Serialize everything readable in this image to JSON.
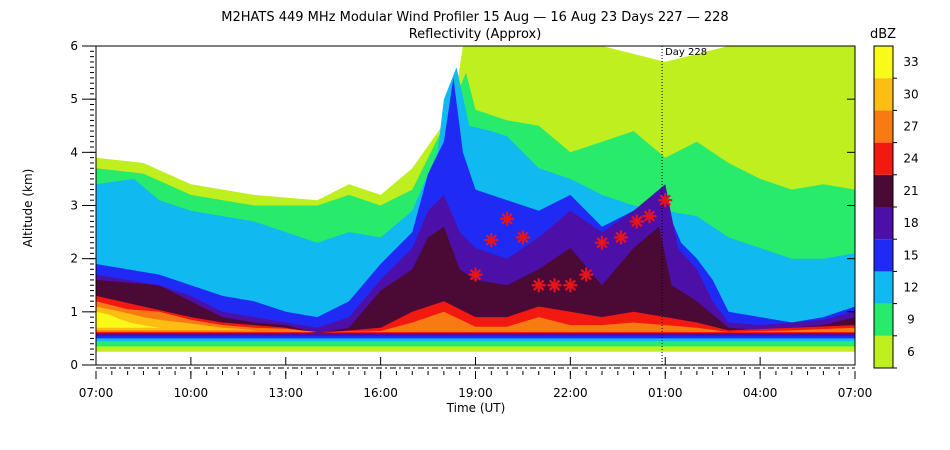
{
  "chart_data": {
    "type": "heatmap",
    "title": "M2HATS 449 MHz Modular Wind Profiler  15 Aug — 16 Aug 23 Days 227 — 228",
    "subtitle": "Reflectivity (Approx)",
    "xlabel": "Time (UT)",
    "ylabel": "Altitude (km)",
    "x_ticks": [
      "07:00",
      "10:00",
      "13:00",
      "16:00",
      "19:00",
      "22:00",
      "01:00",
      "04:00",
      "07:00"
    ],
    "y_ticks": [
      "0",
      "1",
      "2",
      "3",
      "4",
      "5",
      "6"
    ],
    "xlim_hours": [
      0,
      24
    ],
    "ylim_km": [
      0,
      6
    ],
    "annotation": {
      "label": "Day 228",
      "x_hours": 17.9
    },
    "colorbar": {
      "unit": "dBZ",
      "tick_labels": [
        "6",
        "9",
        "12",
        "15",
        "18",
        "21",
        "24",
        "27",
        "30",
        "33"
      ],
      "levels": [
        {
          "from": 6,
          "to": 9,
          "color": "#bfef1f"
        },
        {
          "from": 9,
          "to": 12,
          "color": "#28ea6b"
        },
        {
          "from": 12,
          "to": 15,
          "color": "#10b9ef"
        },
        {
          "from": 15,
          "to": 18,
          "color": "#1f2bf4"
        },
        {
          "from": 18,
          "to": 21,
          "color": "#4c0fa8"
        },
        {
          "from": 21,
          "to": 24,
          "color": "#4b0a36"
        },
        {
          "from": 24,
          "to": 27,
          "color": "#f21a10"
        },
        {
          "from": 27,
          "to": 30,
          "color": "#f87a13"
        },
        {
          "from": 30,
          "to": 33,
          "color": "#fdbd13"
        },
        {
          "from": 33,
          "to": 36,
          "color": "#fafa1a"
        }
      ]
    },
    "layers": [
      {
        "color": "#bfef1f",
        "points": [
          [
            0,
            0.25
          ],
          [
            0,
            3.9
          ],
          [
            1.5,
            3.8
          ],
          [
            3,
            3.4
          ],
          [
            5,
            3.2
          ],
          [
            7,
            3.1
          ],
          [
            8,
            3.4
          ],
          [
            9,
            3.2
          ],
          [
            10,
            3.7
          ],
          [
            11.3,
            4.8
          ],
          [
            11.6,
            6
          ],
          [
            14,
            6
          ],
          [
            16,
            6
          ],
          [
            18,
            5.7
          ],
          [
            20,
            6
          ],
          [
            24,
            6
          ],
          [
            24,
            4.2
          ],
          [
            24,
            0.25
          ]
        ]
      },
      {
        "color": "#28ea6b",
        "points": [
          [
            0,
            0.35
          ],
          [
            0,
            3.7
          ],
          [
            1.5,
            3.6
          ],
          [
            3,
            3.2
          ],
          [
            5,
            3.0
          ],
          [
            7,
            3.0
          ],
          [
            8,
            3.2
          ],
          [
            9,
            3.0
          ],
          [
            10,
            3.3
          ],
          [
            11,
            4.5
          ],
          [
            11.7,
            5.5
          ],
          [
            12,
            4.8
          ],
          [
            13,
            4.6
          ],
          [
            14,
            4.5
          ],
          [
            15,
            4.0
          ],
          [
            16,
            4.2
          ],
          [
            17,
            4.4
          ],
          [
            18,
            3.9
          ],
          [
            19,
            4.2
          ],
          [
            20,
            3.8
          ],
          [
            21,
            3.5
          ],
          [
            22,
            3.3
          ],
          [
            23,
            3.4
          ],
          [
            24,
            3.3
          ],
          [
            24,
            0.35
          ]
        ]
      },
      {
        "color": "#10b9ef",
        "points": [
          [
            0,
            0.45
          ],
          [
            0,
            3.4
          ],
          [
            1.2,
            3.5
          ],
          [
            2,
            3.1
          ],
          [
            3,
            2.9
          ],
          [
            4,
            2.8
          ],
          [
            5,
            2.7
          ],
          [
            6,
            2.5
          ],
          [
            7,
            2.3
          ],
          [
            8,
            2.5
          ],
          [
            9,
            2.4
          ],
          [
            10,
            2.9
          ],
          [
            10.8,
            4.0
          ],
          [
            11,
            5.0
          ],
          [
            11.4,
            5.6
          ],
          [
            11.8,
            4.5
          ],
          [
            12.5,
            4.4
          ],
          [
            13,
            4.3
          ],
          [
            14,
            3.7
          ],
          [
            15,
            3.5
          ],
          [
            16,
            3.2
          ],
          [
            17,
            3.0
          ],
          [
            18,
            2.9
          ],
          [
            19,
            2.8
          ],
          [
            20,
            2.4
          ],
          [
            21,
            2.2
          ],
          [
            22,
            2.0
          ],
          [
            23,
            2.0
          ],
          [
            24,
            2.1
          ],
          [
            24,
            0.45
          ]
        ]
      },
      {
        "color": "#1f2bf4",
        "points": [
          [
            0,
            0.5
          ],
          [
            0,
            1.9
          ],
          [
            1,
            1.8
          ],
          [
            2,
            1.7
          ],
          [
            3,
            1.5
          ],
          [
            4,
            1.3
          ],
          [
            5,
            1.2
          ],
          [
            6,
            1.0
          ],
          [
            7,
            0.9
          ],
          [
            8,
            1.2
          ],
          [
            9,
            1.9
          ],
          [
            10,
            2.5
          ],
          [
            10.5,
            3.6
          ],
          [
            11,
            4.2
          ],
          [
            11.3,
            5.4
          ],
          [
            11.6,
            4.0
          ],
          [
            12,
            3.3
          ],
          [
            13,
            3.1
          ],
          [
            14,
            2.9
          ],
          [
            15,
            3.2
          ],
          [
            16,
            2.6
          ],
          [
            17,
            2.9
          ],
          [
            18,
            3.0
          ],
          [
            18.5,
            2.3
          ],
          [
            19,
            2.0
          ],
          [
            19.5,
            1.6
          ],
          [
            20,
            1.0
          ],
          [
            21,
            0.9
          ],
          [
            22,
            0.8
          ],
          [
            23,
            0.9
          ],
          [
            24,
            1.1
          ],
          [
            24,
            0.5
          ]
        ]
      },
      {
        "color": "#4c0fa8",
        "points": [
          [
            0,
            0.55
          ],
          [
            0,
            1.7
          ],
          [
            1,
            1.6
          ],
          [
            2,
            1.5
          ],
          [
            3,
            1.3
          ],
          [
            4,
            1.0
          ],
          [
            5,
            0.9
          ],
          [
            6,
            0.8
          ],
          [
            7,
            0.7
          ],
          [
            8,
            0.9
          ],
          [
            9,
            1.6
          ],
          [
            10,
            2.2
          ],
          [
            10.5,
            2.9
          ],
          [
            11,
            3.2
          ],
          [
            11.5,
            2.5
          ],
          [
            12,
            2.2
          ],
          [
            13,
            2.0
          ],
          [
            14,
            2.4
          ],
          [
            15,
            2.9
          ],
          [
            16,
            2.5
          ],
          [
            17,
            2.9
          ],
          [
            18,
            3.4
          ],
          [
            18.4,
            2.2
          ],
          [
            19,
            1.8
          ],
          [
            19.5,
            1.2
          ],
          [
            20,
            0.8
          ],
          [
            21,
            0.75
          ],
          [
            22,
            0.8
          ],
          [
            23,
            0.85
          ],
          [
            24,
            1.0
          ],
          [
            24,
            0.55
          ]
        ]
      },
      {
        "color": "#4b0a36",
        "points": [
          [
            0,
            0.6
          ],
          [
            0,
            1.6
          ],
          [
            2,
            1.5
          ],
          [
            3,
            1.2
          ],
          [
            4,
            0.9
          ],
          [
            5,
            0.8
          ],
          [
            6,
            0.75
          ],
          [
            7,
            0.6
          ],
          [
            8,
            0.7
          ],
          [
            9,
            1.4
          ],
          [
            10,
            1.8
          ],
          [
            10.5,
            2.4
          ],
          [
            11,
            2.6
          ],
          [
            11.5,
            1.8
          ],
          [
            12,
            1.6
          ],
          [
            13,
            1.5
          ],
          [
            14,
            1.8
          ],
          [
            15,
            2.2
          ],
          [
            16,
            1.5
          ],
          [
            17,
            2.2
          ],
          [
            17.8,
            2.6
          ],
          [
            18.2,
            1.5
          ],
          [
            19,
            1.2
          ],
          [
            20,
            0.7
          ],
          [
            21,
            0.65
          ],
          [
            22,
            0.7
          ],
          [
            23,
            0.75
          ],
          [
            24,
            0.9
          ],
          [
            24,
            0.6
          ]
        ]
      },
      {
        "color": "#f21a10",
        "points": [
          [
            0,
            0.6
          ],
          [
            0,
            1.3
          ],
          [
            1.5,
            1.1
          ],
          [
            3,
            0.9
          ],
          [
            4,
            0.8
          ],
          [
            5,
            0.75
          ],
          [
            6,
            0.7
          ],
          [
            7,
            0.6
          ],
          [
            9,
            0.7
          ],
          [
            10,
            1.0
          ],
          [
            11,
            1.2
          ],
          [
            12,
            0.9
          ],
          [
            13,
            0.9
          ],
          [
            14,
            1.1
          ],
          [
            15,
            1.0
          ],
          [
            16,
            0.9
          ],
          [
            17,
            1.0
          ],
          [
            18,
            0.9
          ],
          [
            19,
            0.8
          ],
          [
            20,
            0.65
          ],
          [
            22,
            0.7
          ],
          [
            24,
            0.75
          ],
          [
            24,
            0.6
          ]
        ]
      },
      {
        "color": "#f87a13",
        "points": [
          [
            0,
            0.62
          ],
          [
            0,
            1.2
          ],
          [
            1,
            1.05
          ],
          [
            2,
            1.0
          ],
          [
            3,
            0.85
          ],
          [
            4,
            0.75
          ],
          [
            5,
            0.7
          ],
          [
            6,
            0.68
          ],
          [
            7,
            0.62
          ],
          [
            9,
            0.64
          ],
          [
            10,
            0.8
          ],
          [
            11,
            1.0
          ],
          [
            12,
            0.72
          ],
          [
            13,
            0.72
          ],
          [
            14,
            0.9
          ],
          [
            15,
            0.75
          ],
          [
            16,
            0.75
          ],
          [
            17,
            0.8
          ],
          [
            18,
            0.75
          ],
          [
            19,
            0.7
          ],
          [
            20,
            0.62
          ],
          [
            22,
            0.65
          ],
          [
            24,
            0.7
          ],
          [
            24,
            0.62
          ]
        ]
      },
      {
        "color": "#fdbd13",
        "points": [
          [
            0,
            0.65
          ],
          [
            0,
            1.1
          ],
          [
            0.8,
            1.0
          ],
          [
            1.5,
            0.9
          ],
          [
            2,
            0.85
          ],
          [
            3,
            0.78
          ],
          [
            4,
            0.7
          ],
          [
            4.5,
            0.68
          ],
          [
            5,
            0.65
          ],
          [
            0,
            0.65
          ]
        ]
      },
      {
        "color": "#fafa1a",
        "points": [
          [
            0,
            0.7
          ],
          [
            0,
            1.0
          ],
          [
            0.4,
            0.95
          ],
          [
            0.8,
            0.85
          ],
          [
            1.2,
            0.78
          ],
          [
            1.6,
            0.74
          ],
          [
            2.0,
            0.7
          ],
          [
            0,
            0.7
          ]
        ]
      }
    ],
    "markers": [
      {
        "x_hours": 12.0,
        "y_km": 1.7
      },
      {
        "x_hours": 12.5,
        "y_km": 2.35
      },
      {
        "x_hours": 13.0,
        "y_km": 2.75
      },
      {
        "x_hours": 13.5,
        "y_km": 2.4
      },
      {
        "x_hours": 14.0,
        "y_km": 1.5
      },
      {
        "x_hours": 14.5,
        "y_km": 1.5
      },
      {
        "x_hours": 15.0,
        "y_km": 1.5
      },
      {
        "x_hours": 15.5,
        "y_km": 1.7
      },
      {
        "x_hours": 16.0,
        "y_km": 2.3
      },
      {
        "x_hours": 16.6,
        "y_km": 2.4
      },
      {
        "x_hours": 17.1,
        "y_km": 2.7
      },
      {
        "x_hours": 17.5,
        "y_km": 2.8
      },
      {
        "x_hours": 18.0,
        "y_km": 3.1
      }
    ]
  }
}
